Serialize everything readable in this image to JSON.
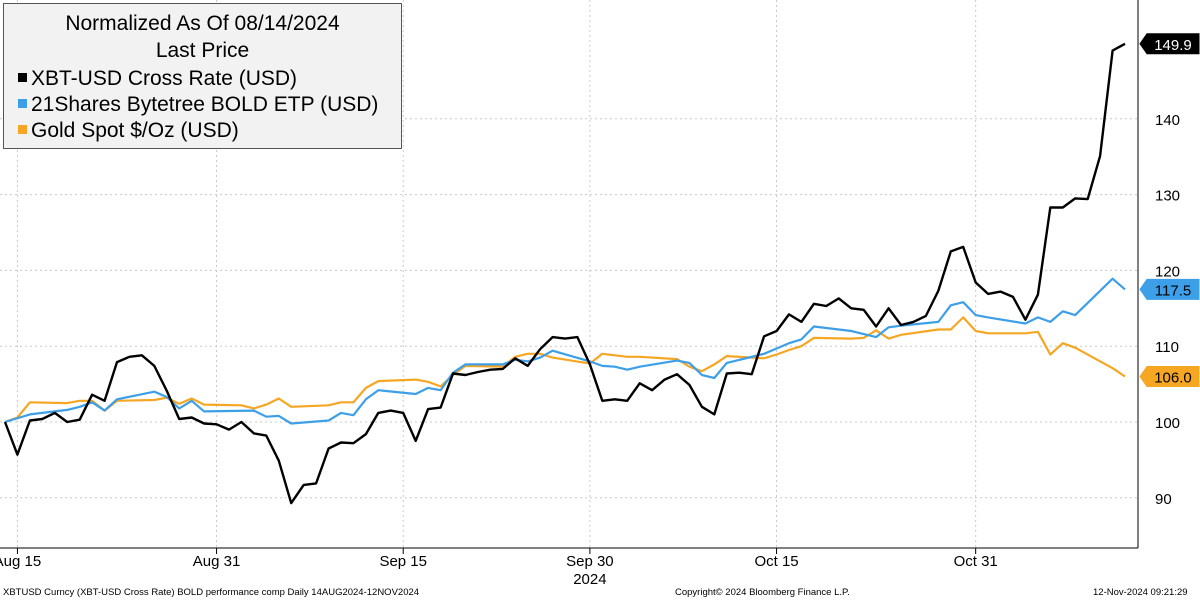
{
  "legend": {
    "title": "Normalized As Of 08/14/2024",
    "subtitle": "Last Price"
  },
  "footer": {
    "left": "XBTUSD Curncy (XBT-USD Cross Rate) BOLD performance comp  Daily 14AUG2024-12NOV2024",
    "center": "Copyright© 2024 Bloomberg Finance L.P.",
    "right": "12-Nov-2024 09:21:29"
  },
  "chart_data": {
    "type": "line",
    "title": "Normalized As Of 08/14/2024",
    "subtitle": "Last Price",
    "x_tick_labels": [
      "Aug 15",
      "Aug 31",
      "Sep 15",
      "Sep 30",
      "Oct 15",
      "Oct 31"
    ],
    "x_year_label": "2024",
    "y_ticks": [
      90,
      100,
      110,
      120,
      130,
      140
    ],
    "ylim": [
      83,
      155
    ],
    "grid": true,
    "legend_position": "top-left",
    "series": [
      {
        "name": "XBT-USD Cross Rate (USD)",
        "color": "#000000",
        "last_value_label": "149.9",
        "values": [
          [
            "2024-08-14",
            100.0
          ],
          [
            "2024-08-15",
            95.7
          ],
          [
            "2024-08-16",
            100.2
          ],
          [
            "2024-08-17",
            100.4
          ],
          [
            "2024-08-18",
            101.2
          ],
          [
            "2024-08-19",
            100.0
          ],
          [
            "2024-08-20",
            100.3
          ],
          [
            "2024-08-21",
            103.6
          ],
          [
            "2024-08-22",
            102.8
          ],
          [
            "2024-08-23",
            107.9
          ],
          [
            "2024-08-24",
            108.6
          ],
          [
            "2024-08-25",
            108.8
          ],
          [
            "2024-08-26",
            107.4
          ],
          [
            "2024-08-27",
            104.1
          ],
          [
            "2024-08-28",
            100.4
          ],
          [
            "2024-08-29",
            100.6
          ],
          [
            "2024-08-30",
            99.8
          ],
          [
            "2024-08-31",
            99.7
          ],
          [
            "2024-09-01",
            99.0
          ],
          [
            "2024-09-02",
            100.0
          ],
          [
            "2024-09-03",
            98.5
          ],
          [
            "2024-09-04",
            98.2
          ],
          [
            "2024-09-05",
            94.9
          ],
          [
            "2024-09-06",
            89.3
          ],
          [
            "2024-09-07",
            91.7
          ],
          [
            "2024-09-08",
            91.9
          ],
          [
            "2024-09-09",
            96.5
          ],
          [
            "2024-09-10",
            97.3
          ],
          [
            "2024-09-11",
            97.2
          ],
          [
            "2024-09-12",
            98.4
          ],
          [
            "2024-09-13",
            101.2
          ],
          [
            "2024-09-14",
            101.5
          ],
          [
            "2024-09-15",
            101.2
          ],
          [
            "2024-09-16",
            97.5
          ],
          [
            "2024-09-17",
            101.7
          ],
          [
            "2024-09-18",
            101.9
          ],
          [
            "2024-09-19",
            106.4
          ],
          [
            "2024-09-20",
            106.2
          ],
          [
            "2024-09-21",
            106.6
          ],
          [
            "2024-09-22",
            106.9
          ],
          [
            "2024-09-23",
            107.0
          ],
          [
            "2024-09-24",
            108.4
          ],
          [
            "2024-09-25",
            107.4
          ],
          [
            "2024-09-26",
            109.6
          ],
          [
            "2024-09-27",
            111.2
          ],
          [
            "2024-09-28",
            111.0
          ],
          [
            "2024-09-29",
            111.2
          ],
          [
            "2024-09-30",
            107.6
          ],
          [
            "2024-10-01",
            102.8
          ],
          [
            "2024-10-02",
            103.0
          ],
          [
            "2024-10-03",
            102.8
          ],
          [
            "2024-10-04",
            105.1
          ],
          [
            "2024-10-05",
            104.2
          ],
          [
            "2024-10-06",
            105.6
          ],
          [
            "2024-10-07",
            106.3
          ],
          [
            "2024-10-08",
            104.9
          ],
          [
            "2024-10-09",
            102.0
          ],
          [
            "2024-10-10",
            101.0
          ],
          [
            "2024-10-11",
            106.4
          ],
          [
            "2024-10-12",
            106.5
          ],
          [
            "2024-10-13",
            106.3
          ],
          [
            "2024-10-14",
            111.3
          ],
          [
            "2024-10-15",
            112.0
          ],
          [
            "2024-10-16",
            114.2
          ],
          [
            "2024-10-17",
            113.2
          ],
          [
            "2024-10-18",
            115.6
          ],
          [
            "2024-10-19",
            115.3
          ],
          [
            "2024-10-20",
            116.3
          ],
          [
            "2024-10-21",
            115.0
          ],
          [
            "2024-10-22",
            114.8
          ],
          [
            "2024-10-23",
            112.6
          ],
          [
            "2024-10-24",
            115.0
          ],
          [
            "2024-10-25",
            112.8
          ],
          [
            "2024-10-26",
            113.2
          ],
          [
            "2024-10-27",
            114.0
          ],
          [
            "2024-10-28",
            117.3
          ],
          [
            "2024-10-29",
            122.5
          ],
          [
            "2024-10-30",
            123.1
          ],
          [
            "2024-10-31",
            118.4
          ],
          [
            "2024-11-01",
            116.9
          ],
          [
            "2024-11-02",
            117.2
          ],
          [
            "2024-11-03",
            116.5
          ],
          [
            "2024-11-04",
            113.5
          ],
          [
            "2024-11-05",
            116.8
          ],
          [
            "2024-11-06",
            128.3
          ],
          [
            "2024-11-07",
            128.3
          ],
          [
            "2024-11-08",
            129.5
          ],
          [
            "2024-11-09",
            129.4
          ],
          [
            "2024-11-10",
            135.1
          ],
          [
            "2024-11-11",
            149.0
          ],
          [
            "2024-11-12",
            149.9
          ]
        ]
      },
      {
        "name": "21Shares Bytetree BOLD ETP (USD)",
        "color": "#3d9fe8",
        "last_value_label": "117.5",
        "values": [
          [
            "2024-08-14",
            100.0
          ],
          [
            "2024-08-16",
            101.0
          ],
          [
            "2024-08-19",
            101.6
          ],
          [
            "2024-08-20",
            102.0
          ],
          [
            "2024-08-21",
            102.6
          ],
          [
            "2024-08-22",
            101.5
          ],
          [
            "2024-08-23",
            103.0
          ],
          [
            "2024-08-26",
            104.0
          ],
          [
            "2024-08-27",
            103.3
          ],
          [
            "2024-08-28",
            101.8
          ],
          [
            "2024-08-29",
            102.8
          ],
          [
            "2024-08-30",
            101.4
          ],
          [
            "2024-09-03",
            101.5
          ],
          [
            "2024-09-04",
            100.7
          ],
          [
            "2024-09-05",
            100.8
          ],
          [
            "2024-09-06",
            99.8
          ],
          [
            "2024-09-09",
            100.2
          ],
          [
            "2024-09-10",
            101.2
          ],
          [
            "2024-09-11",
            100.9
          ],
          [
            "2024-09-12",
            103.0
          ],
          [
            "2024-09-13",
            104.2
          ],
          [
            "2024-09-16",
            103.7
          ],
          [
            "2024-09-17",
            104.5
          ],
          [
            "2024-09-18",
            104.2
          ],
          [
            "2024-09-19",
            106.5
          ],
          [
            "2024-09-20",
            107.6
          ],
          [
            "2024-09-23",
            107.6
          ],
          [
            "2024-09-24",
            108.2
          ],
          [
            "2024-09-25",
            108.0
          ],
          [
            "2024-09-26",
            108.5
          ],
          [
            "2024-09-27",
            109.4
          ],
          [
            "2024-09-30",
            108.0
          ],
          [
            "2024-10-01",
            107.4
          ],
          [
            "2024-10-02",
            107.3
          ],
          [
            "2024-10-03",
            106.9
          ],
          [
            "2024-10-04",
            107.3
          ],
          [
            "2024-10-07",
            108.1
          ],
          [
            "2024-10-08",
            107.8
          ],
          [
            "2024-10-09",
            106.2
          ],
          [
            "2024-10-10",
            105.8
          ],
          [
            "2024-10-11",
            107.8
          ],
          [
            "2024-10-14",
            109.0
          ],
          [
            "2024-10-15",
            109.7
          ],
          [
            "2024-10-16",
            110.4
          ],
          [
            "2024-10-17",
            110.9
          ],
          [
            "2024-10-18",
            112.6
          ],
          [
            "2024-10-21",
            112.0
          ],
          [
            "2024-10-22",
            111.6
          ],
          [
            "2024-10-23",
            111.2
          ],
          [
            "2024-10-24",
            112.5
          ],
          [
            "2024-10-25",
            112.7
          ],
          [
            "2024-10-28",
            113.2
          ],
          [
            "2024-10-29",
            115.4
          ],
          [
            "2024-10-30",
            115.8
          ],
          [
            "2024-10-31",
            114.1
          ],
          [
            "2024-11-01",
            113.8
          ],
          [
            "2024-11-04",
            113.0
          ],
          [
            "2024-11-05",
            113.8
          ],
          [
            "2024-11-06",
            113.2
          ],
          [
            "2024-11-07",
            114.6
          ],
          [
            "2024-11-08",
            114.1
          ],
          [
            "2024-11-11",
            118.9
          ],
          [
            "2024-11-12",
            117.5
          ]
        ]
      },
      {
        "name": "Gold Spot $/Oz (USD)",
        "color": "#f5a623",
        "last_value_label": "106.0",
        "values": [
          [
            "2024-08-14",
            100.0
          ],
          [
            "2024-08-15",
            100.6
          ],
          [
            "2024-08-16",
            102.6
          ],
          [
            "2024-08-19",
            102.5
          ],
          [
            "2024-08-20",
            102.8
          ],
          [
            "2024-08-21",
            102.8
          ],
          [
            "2024-08-22",
            101.5
          ],
          [
            "2024-08-23",
            102.8
          ],
          [
            "2024-08-26",
            102.9
          ],
          [
            "2024-08-27",
            103.2
          ],
          [
            "2024-08-28",
            102.4
          ],
          [
            "2024-08-29",
            103.1
          ],
          [
            "2024-08-30",
            102.3
          ],
          [
            "2024-09-02",
            102.2
          ],
          [
            "2024-09-03",
            101.8
          ],
          [
            "2024-09-04",
            102.3
          ],
          [
            "2024-09-05",
            103.1
          ],
          [
            "2024-09-06",
            102.0
          ],
          [
            "2024-09-09",
            102.2
          ],
          [
            "2024-09-10",
            102.6
          ],
          [
            "2024-09-11",
            102.6
          ],
          [
            "2024-09-12",
            104.5
          ],
          [
            "2024-09-13",
            105.4
          ],
          [
            "2024-09-16",
            105.6
          ],
          [
            "2024-09-17",
            105.3
          ],
          [
            "2024-09-18",
            104.7
          ],
          [
            "2024-09-19",
            106.2
          ],
          [
            "2024-09-20",
            107.4
          ],
          [
            "2024-09-23",
            107.3
          ],
          [
            "2024-09-24",
            108.6
          ],
          [
            "2024-09-25",
            109.0
          ],
          [
            "2024-09-26",
            109.0
          ],
          [
            "2024-09-27",
            108.5
          ],
          [
            "2024-09-30",
            107.7
          ],
          [
            "2024-10-01",
            109.0
          ],
          [
            "2024-10-02",
            108.8
          ],
          [
            "2024-10-03",
            108.6
          ],
          [
            "2024-10-04",
            108.6
          ],
          [
            "2024-10-07",
            108.3
          ],
          [
            "2024-10-08",
            107.3
          ],
          [
            "2024-10-09",
            106.7
          ],
          [
            "2024-10-10",
            107.6
          ],
          [
            "2024-10-11",
            108.7
          ],
          [
            "2024-10-14",
            108.4
          ],
          [
            "2024-10-15",
            108.9
          ],
          [
            "2024-10-16",
            109.5
          ],
          [
            "2024-10-17",
            110.0
          ],
          [
            "2024-10-18",
            111.1
          ],
          [
            "2024-10-21",
            111.0
          ],
          [
            "2024-10-22",
            111.1
          ],
          [
            "2024-10-23",
            112.1
          ],
          [
            "2024-10-24",
            111.0
          ],
          [
            "2024-10-25",
            111.5
          ],
          [
            "2024-10-28",
            112.2
          ],
          [
            "2024-10-29",
            112.2
          ],
          [
            "2024-10-30",
            113.8
          ],
          [
            "2024-10-31",
            112.0
          ],
          [
            "2024-11-01",
            111.7
          ],
          [
            "2024-11-04",
            111.7
          ],
          [
            "2024-11-05",
            111.9
          ],
          [
            "2024-11-06",
            108.9
          ],
          [
            "2024-11-07",
            110.4
          ],
          [
            "2024-11-08",
            109.8
          ],
          [
            "2024-11-11",
            107.1
          ],
          [
            "2024-11-12",
            106.0
          ]
        ]
      }
    ]
  }
}
